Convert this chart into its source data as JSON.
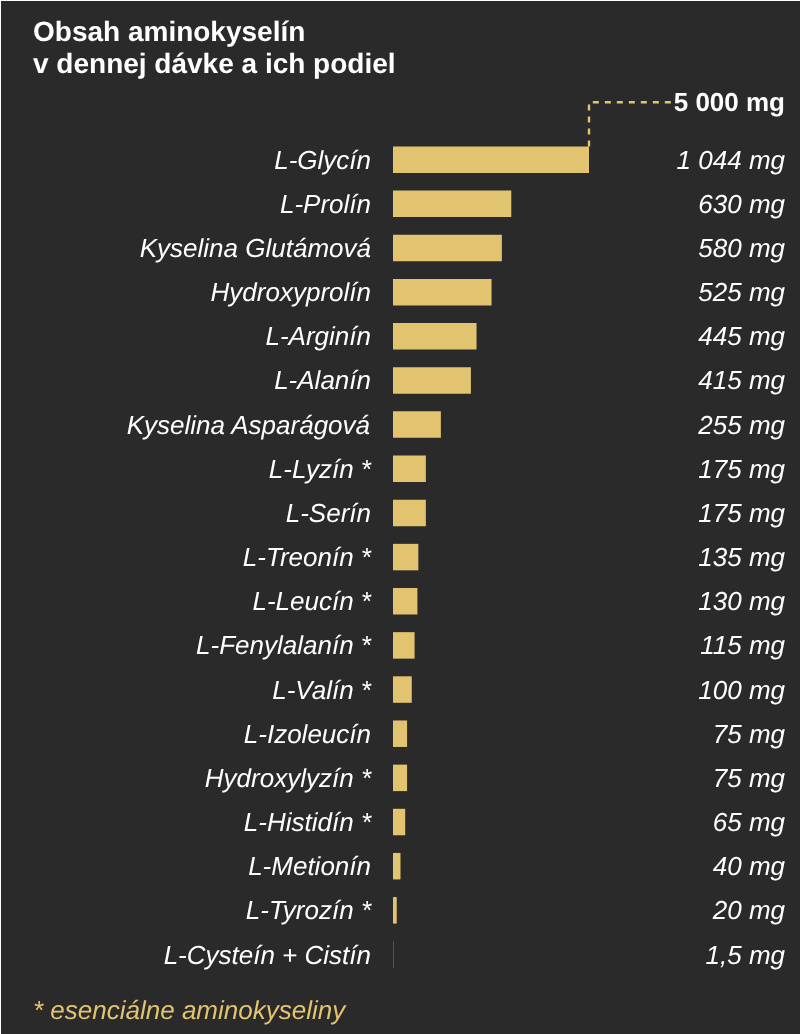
{
  "chart_data": {
    "type": "bar",
    "orientation": "horizontal",
    "title": "Obsah aminokyselín\nv dennej dávke a ich podiel",
    "categories": [
      "L-Glycín",
      "L-Prolín",
      "Kyselina Glutámová",
      "Hydroxyprolín",
      "L-Arginín",
      "L-Alanín",
      "Kyselina Asparágová",
      "L-Lyzín *",
      "L-Serín",
      "L-Treonín *",
      "L-Leucín *",
      "L-Fenylalanín *",
      "L-Valín *",
      "L-Izoleucín",
      "Hydroxylyzín *",
      "L-Histidín *",
      "L-Metionín",
      "L-Tyrozín *",
      "L-Cysteín + Cistín"
    ],
    "values": [
      1044,
      630,
      580,
      525,
      445,
      415,
      255,
      175,
      175,
      135,
      130,
      115,
      100,
      75,
      75,
      65,
      40,
      20,
      1.5
    ],
    "value_labels": [
      "1 044 mg",
      "630 mg",
      "580 mg",
      "525 mg",
      "445 mg",
      "415 mg",
      "255 mg",
      "175 mg",
      "175 mg",
      "135 mg",
      "130 mg",
      "115 mg",
      "100 mg",
      "75 mg",
      "75 mg",
      "65 mg",
      "40 mg",
      "20 mg",
      "1,5 mg"
    ],
    "color": "#e2c470",
    "annotations": [
      "5 000 mg",
      "* esenciálne aminokyseliny"
    ],
    "grid": false
  }
}
